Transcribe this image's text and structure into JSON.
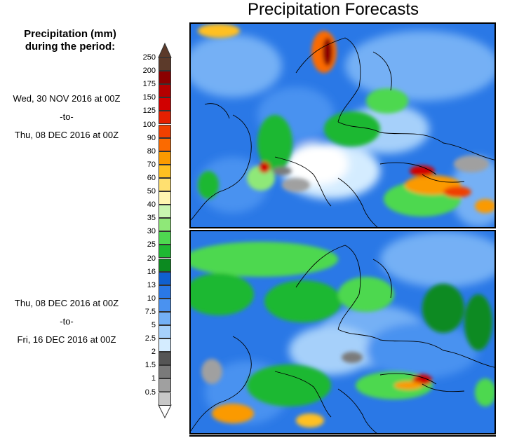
{
  "title": "Precipitation Forecasts",
  "legend": {
    "heading_line1": "Precipitation (mm)",
    "heading_line2": "during the period:",
    "levels": [
      "250",
      "200",
      "175",
      "150",
      "125",
      "100",
      "90",
      "80",
      "70",
      "60",
      "50",
      "40",
      "35",
      "30",
      "25",
      "20",
      "16",
      "13",
      "10",
      "7.5",
      "5",
      "2.5",
      "2",
      "1.5",
      "1",
      "0.5"
    ],
    "colors": [
      "#5c3a2a",
      "#8b0000",
      "#b40000",
      "#d10000",
      "#e42000",
      "#f04000",
      "#fb6a00",
      "#fb9a00",
      "#ffc020",
      "#ffe070",
      "#fff5b0",
      "#c8f5b0",
      "#8fe878",
      "#4ed850",
      "#1eb832",
      "#0c8a20",
      "#1060d0",
      "#2a78e6",
      "#4a92f0",
      "#74b0f5",
      "#a6d0fa",
      "#d4ecff",
      "#555555",
      "#7a7a7a",
      "#a0a0a0",
      "#c8c8c8"
    ]
  },
  "panels": [
    {
      "from": "Wed, 30 NOV 2016 at 00Z",
      "sep": "-to-",
      "to": "Thu, 08 DEC 2016 at 00Z"
    },
    {
      "from": "Thu, 08 DEC 2016 at 00Z",
      "sep": "-to-",
      "to": "Fri, 16 DEC 2016 at 00Z"
    }
  ]
}
